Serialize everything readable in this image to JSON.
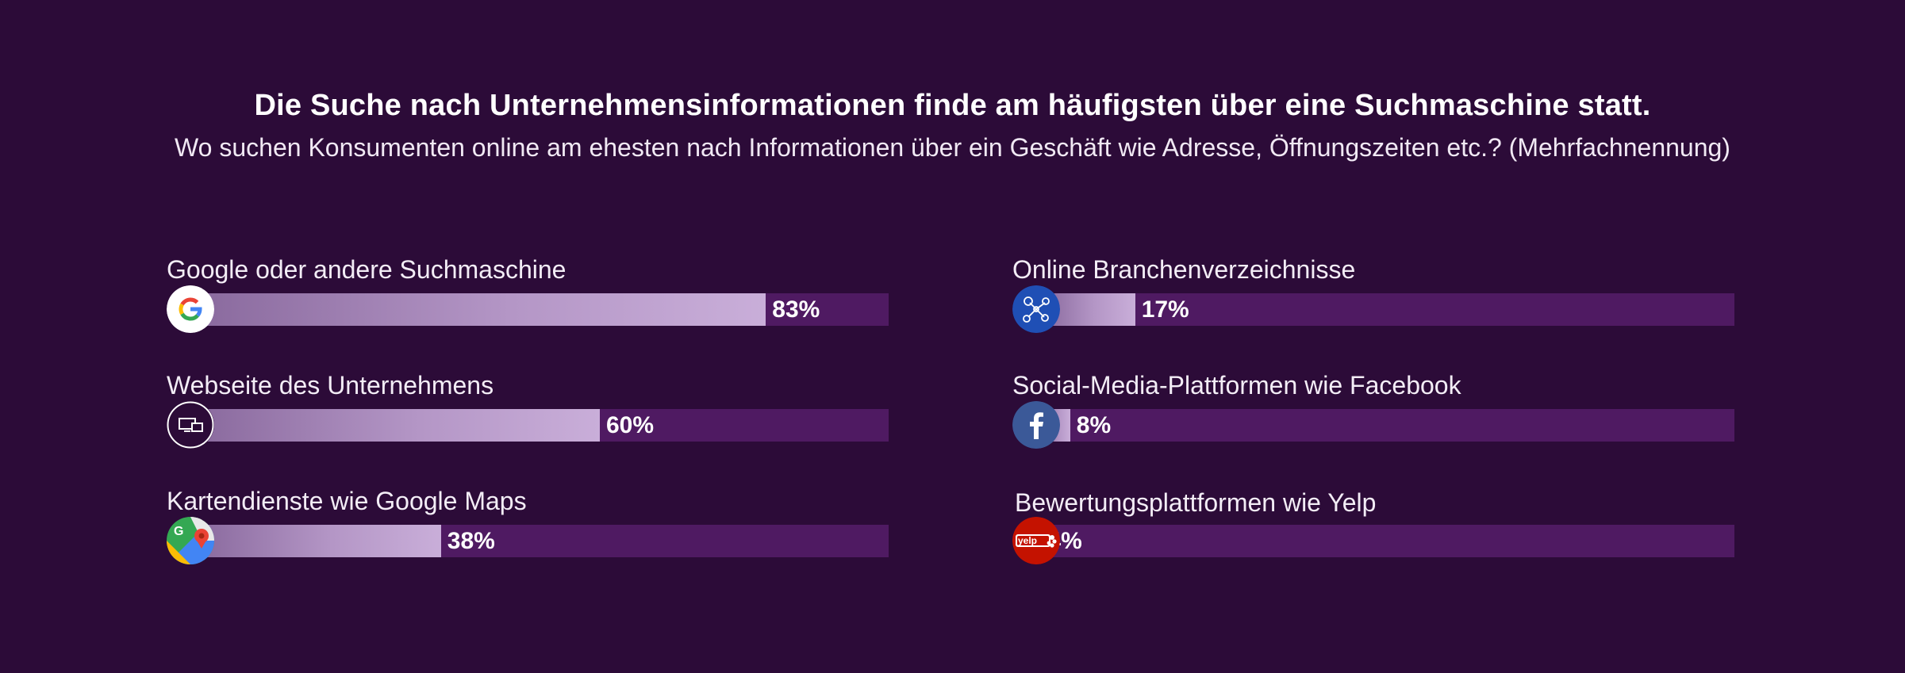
{
  "title": "Die Suche nach Unternehmensinformationen finde am häufigsten über eine Suchmaschine statt.",
  "subtitle": "Wo suchen Konsumenten online am ehesten nach Informationen über ein Geschäft wie Adresse, Öffnungszeiten etc.? (Mehrfachnennung)",
  "colors": {
    "background": "#2c0b38",
    "track": "#4f1a62",
    "fill_start": "#8a6a9e",
    "fill_end": "#c9aed9"
  },
  "chart_data": {
    "type": "bar",
    "orientation": "horizontal",
    "xlim": [
      0,
      100
    ],
    "categories": [
      "Google oder andere Suchmaschine",
      "Webseite des Unternehmens",
      "Kartendienste wie Google Maps",
      "Online Branchenverzeichnisse",
      "Social-Media-Plattformen wie Facebook",
      "Bewertungsplattformen wie Yelp"
    ],
    "values": [
      83,
      60,
      38,
      17,
      8,
      4
    ],
    "value_labels": [
      "83%",
      "60%",
      "38%",
      "17%",
      "8%",
      "4%"
    ],
    "icons": [
      "google-icon",
      "devices-icon",
      "google-maps-icon",
      "directory-icon",
      "facebook-icon",
      "yelp-icon"
    ]
  }
}
